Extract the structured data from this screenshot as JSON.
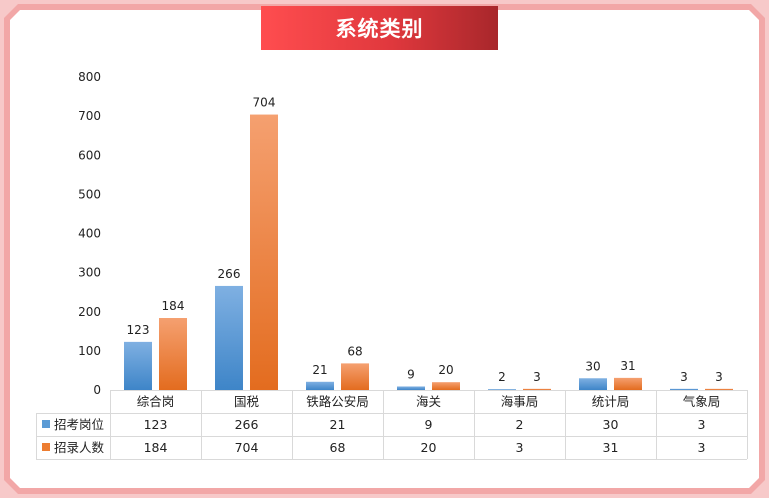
{
  "title": "系统类别",
  "chart_data": {
    "type": "bar",
    "categories": [
      "综合岗",
      "国税",
      "铁路公安局",
      "海关",
      "海事局",
      "统计局",
      "气象局"
    ],
    "series": [
      {
        "name": "招考岗位",
        "values": [
          123,
          266,
          21,
          9,
          2,
          30,
          3
        ],
        "color": "#5b9bd5"
      },
      {
        "name": "招录人数",
        "values": [
          184,
          704,
          68,
          20,
          3,
          31,
          3
        ],
        "color": "#ed7d31"
      }
    ],
    "ylim": [
      0,
      800
    ],
    "yticks": [
      0,
      100,
      200,
      300,
      400,
      500,
      600,
      700,
      800
    ],
    "grid": false,
    "legend": "data-table"
  }
}
